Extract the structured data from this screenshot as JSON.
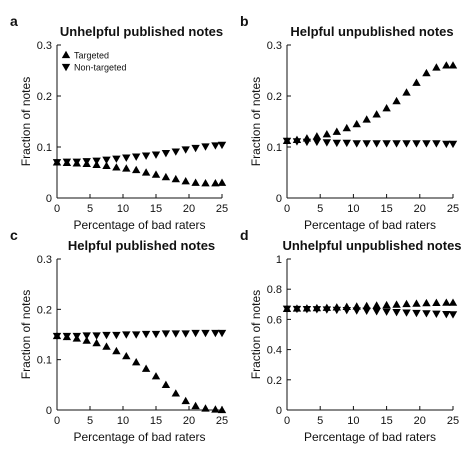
{
  "chart_data": [
    {
      "type": "scatter",
      "panel": "a",
      "title": "Unhelpful published notes",
      "xlabel": "Percentage of bad raters",
      "ylabel": "Fraction of notes",
      "xlim": [
        0,
        25
      ],
      "ylim": [
        0,
        0.3
      ],
      "xticks": [
        "0",
        "5",
        "10",
        "15",
        "20",
        "25"
      ],
      "yticks": [
        "0",
        "0.1",
        "0.2",
        "0.3"
      ],
      "legend": "top-left",
      "x": [
        0,
        1.5,
        3,
        4.5,
        6,
        7.5,
        9,
        10.5,
        12,
        13.5,
        15,
        16.5,
        18,
        19.5,
        21,
        22.5,
        24,
        25
      ],
      "series": [
        {
          "name": "Targeted",
          "marker": "triangle-up",
          "values": [
            0.07,
            0.069,
            0.068,
            0.067,
            0.065,
            0.063,
            0.06,
            0.058,
            0.055,
            0.05,
            0.046,
            0.041,
            0.037,
            0.033,
            0.03,
            0.029,
            0.029,
            0.03
          ]
        },
        {
          "name": "Non-targeted",
          "marker": "triangle-down",
          "values": [
            0.07,
            0.071,
            0.071,
            0.072,
            0.073,
            0.075,
            0.077,
            0.079,
            0.081,
            0.083,
            0.085,
            0.088,
            0.091,
            0.095,
            0.098,
            0.101,
            0.103,
            0.104
          ]
        }
      ]
    },
    {
      "type": "scatter",
      "panel": "b",
      "title": "Helpful unpublished notes",
      "xlabel": "Percentage of bad raters",
      "ylabel": "Fraction of notes",
      "xlim": [
        0,
        25
      ],
      "ylim": [
        0,
        0.3
      ],
      "xticks": [
        "0",
        "5",
        "10",
        "15",
        "20",
        "25"
      ],
      "yticks": [
        "0",
        "0.1",
        "0.2",
        "0.3"
      ],
      "x": [
        0,
        1.5,
        3,
        4.5,
        6,
        7.5,
        9,
        10.5,
        12,
        13.5,
        15,
        16.5,
        18,
        19.5,
        21,
        22.5,
        24,
        25
      ],
      "series": [
        {
          "name": "Targeted",
          "marker": "triangle-up",
          "values": [
            0.112,
            0.114,
            0.117,
            0.121,
            0.125,
            0.13,
            0.137,
            0.145,
            0.154,
            0.164,
            0.176,
            0.19,
            0.207,
            0.226,
            0.245,
            0.256,
            0.26,
            0.26
          ]
        },
        {
          "name": "Non-targeted",
          "marker": "triangle-down",
          "values": [
            0.112,
            0.111,
            0.11,
            0.11,
            0.109,
            0.108,
            0.108,
            0.107,
            0.107,
            0.107,
            0.107,
            0.107,
            0.107,
            0.107,
            0.107,
            0.107,
            0.106,
            0.106
          ]
        }
      ]
    },
    {
      "type": "scatter",
      "panel": "c",
      "title": "Helpful published notes",
      "xlabel": "Percentage of bad raters",
      "ylabel": "Fraction of notes",
      "xlim": [
        0,
        25
      ],
      "ylim": [
        0,
        0.3
      ],
      "xticks": [
        "0",
        "5",
        "10",
        "15",
        "20",
        "25"
      ],
      "yticks": [
        "0",
        "0.1",
        "0.2",
        "0.3"
      ],
      "x": [
        0,
        1.5,
        3,
        4.5,
        6,
        7.5,
        9,
        10.5,
        12,
        13.5,
        15,
        16.5,
        18,
        19.5,
        21,
        22.5,
        24,
        25
      ],
      "series": [
        {
          "name": "Targeted",
          "marker": "triangle-up",
          "values": [
            0.147,
            0.145,
            0.142,
            0.138,
            0.133,
            0.126,
            0.117,
            0.107,
            0.095,
            0.082,
            0.067,
            0.05,
            0.033,
            0.018,
            0.008,
            0.003,
            0.001,
            0.0
          ]
        },
        {
          "name": "Non-targeted",
          "marker": "triangle-down",
          "values": [
            0.147,
            0.147,
            0.147,
            0.148,
            0.148,
            0.149,
            0.149,
            0.15,
            0.15,
            0.151,
            0.151,
            0.152,
            0.152,
            0.152,
            0.153,
            0.153,
            0.153,
            0.153
          ]
        }
      ]
    },
    {
      "type": "scatter",
      "panel": "d",
      "title": "Unhelpful unpublished notes",
      "xlabel": "Percentage of bad raters",
      "ylabel": "Fraction of notes",
      "xlim": [
        0,
        25
      ],
      "ylim": [
        0,
        1
      ],
      "xticks": [
        "0",
        "5",
        "10",
        "15",
        "20",
        "25"
      ],
      "yticks": [
        "0",
        "0.2",
        "0.4",
        "0.6",
        "0.8",
        "1"
      ],
      "x": [
        0,
        1.5,
        3,
        4.5,
        6,
        7.5,
        9,
        10.5,
        12,
        13.5,
        15,
        16.5,
        18,
        19.5,
        21,
        22.5,
        24,
        25
      ],
      "series": [
        {
          "name": "Targeted",
          "marker": "triangle-up",
          "values": [
            0.67,
            0.672,
            0.673,
            0.675,
            0.677,
            0.68,
            0.683,
            0.686,
            0.689,
            0.692,
            0.695,
            0.698,
            0.702,
            0.705,
            0.708,
            0.71,
            0.711,
            0.711
          ]
        },
        {
          "name": "Non-targeted",
          "marker": "triangle-down",
          "values": [
            0.67,
            0.669,
            0.668,
            0.667,
            0.665,
            0.663,
            0.661,
            0.659,
            0.657,
            0.654,
            0.651,
            0.648,
            0.645,
            0.642,
            0.64,
            0.637,
            0.635,
            0.633
          ]
        }
      ]
    }
  ]
}
